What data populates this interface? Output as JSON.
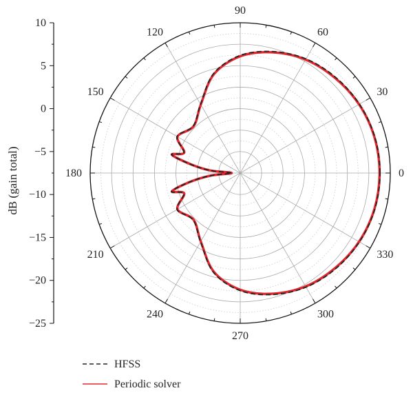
{
  "chart_data": {
    "type": "polar-line",
    "ylabel": "dB (gain total)",
    "rlim": [
      -25,
      10
    ],
    "r_ticks": [
      10,
      5,
      0,
      -5,
      -10,
      -15,
      -20,
      -25
    ],
    "r_tick_labels": [
      "10",
      "5",
      "0",
      "−5",
      "−10",
      "−15",
      "−20",
      "−25"
    ],
    "angle_ticks": [
      0,
      30,
      60,
      90,
      120,
      150,
      180,
      210,
      240,
      270,
      300,
      330
    ],
    "angle_tick_labels": [
      "0",
      "30",
      "60",
      "90",
      "120",
      "150",
      "180",
      "210",
      "240",
      "270",
      "300",
      "330"
    ],
    "grid": true,
    "legend_position": "bottom-left",
    "series": [
      {
        "name": "HFSS",
        "style": "dashed",
        "color": "#222222",
        "theta": [
          0,
          15,
          30,
          45,
          60,
          75,
          90,
          105,
          120,
          135,
          150,
          160,
          165,
          170,
          175,
          180,
          185,
          190,
          195,
          200,
          210,
          225,
          240,
          255,
          270,
          285,
          300,
          315,
          330,
          345,
          360
        ],
        "r": [
          7.6,
          7.5,
          7.1,
          6.5,
          5.7,
          4.3,
          2.4,
          -1.0,
          -6.5,
          -9.5,
          -8.0,
          -11.0,
          -8.4,
          -13.2,
          -17.8,
          -23.0,
          -18.0,
          -13.0,
          -8.4,
          -11.0,
          -8.0,
          -9.5,
          -6.5,
          -1.0,
          2.4,
          4.3,
          5.7,
          6.5,
          7.1,
          7.5,
          7.6
        ]
      },
      {
        "name": "Periodic solver",
        "style": "solid",
        "color": "#e0282e",
        "theta": [
          0,
          15,
          30,
          45,
          60,
          75,
          90,
          105,
          120,
          135,
          150,
          160,
          165,
          170,
          175,
          180,
          185,
          190,
          195,
          200,
          210,
          225,
          240,
          255,
          270,
          285,
          300,
          315,
          330,
          345,
          360
        ],
        "r": [
          7.5,
          7.4,
          7.0,
          6.3,
          5.5,
          4.1,
          2.2,
          -1.2,
          -6.6,
          -9.6,
          -8.1,
          -11.1,
          -8.5,
          -13.3,
          -17.9,
          -23.0,
          -18.1,
          -13.1,
          -8.5,
          -11.1,
          -8.1,
          -9.6,
          -6.6,
          -1.2,
          2.2,
          4.1,
          5.5,
          6.3,
          7.0,
          7.4,
          7.5
        ]
      }
    ]
  }
}
